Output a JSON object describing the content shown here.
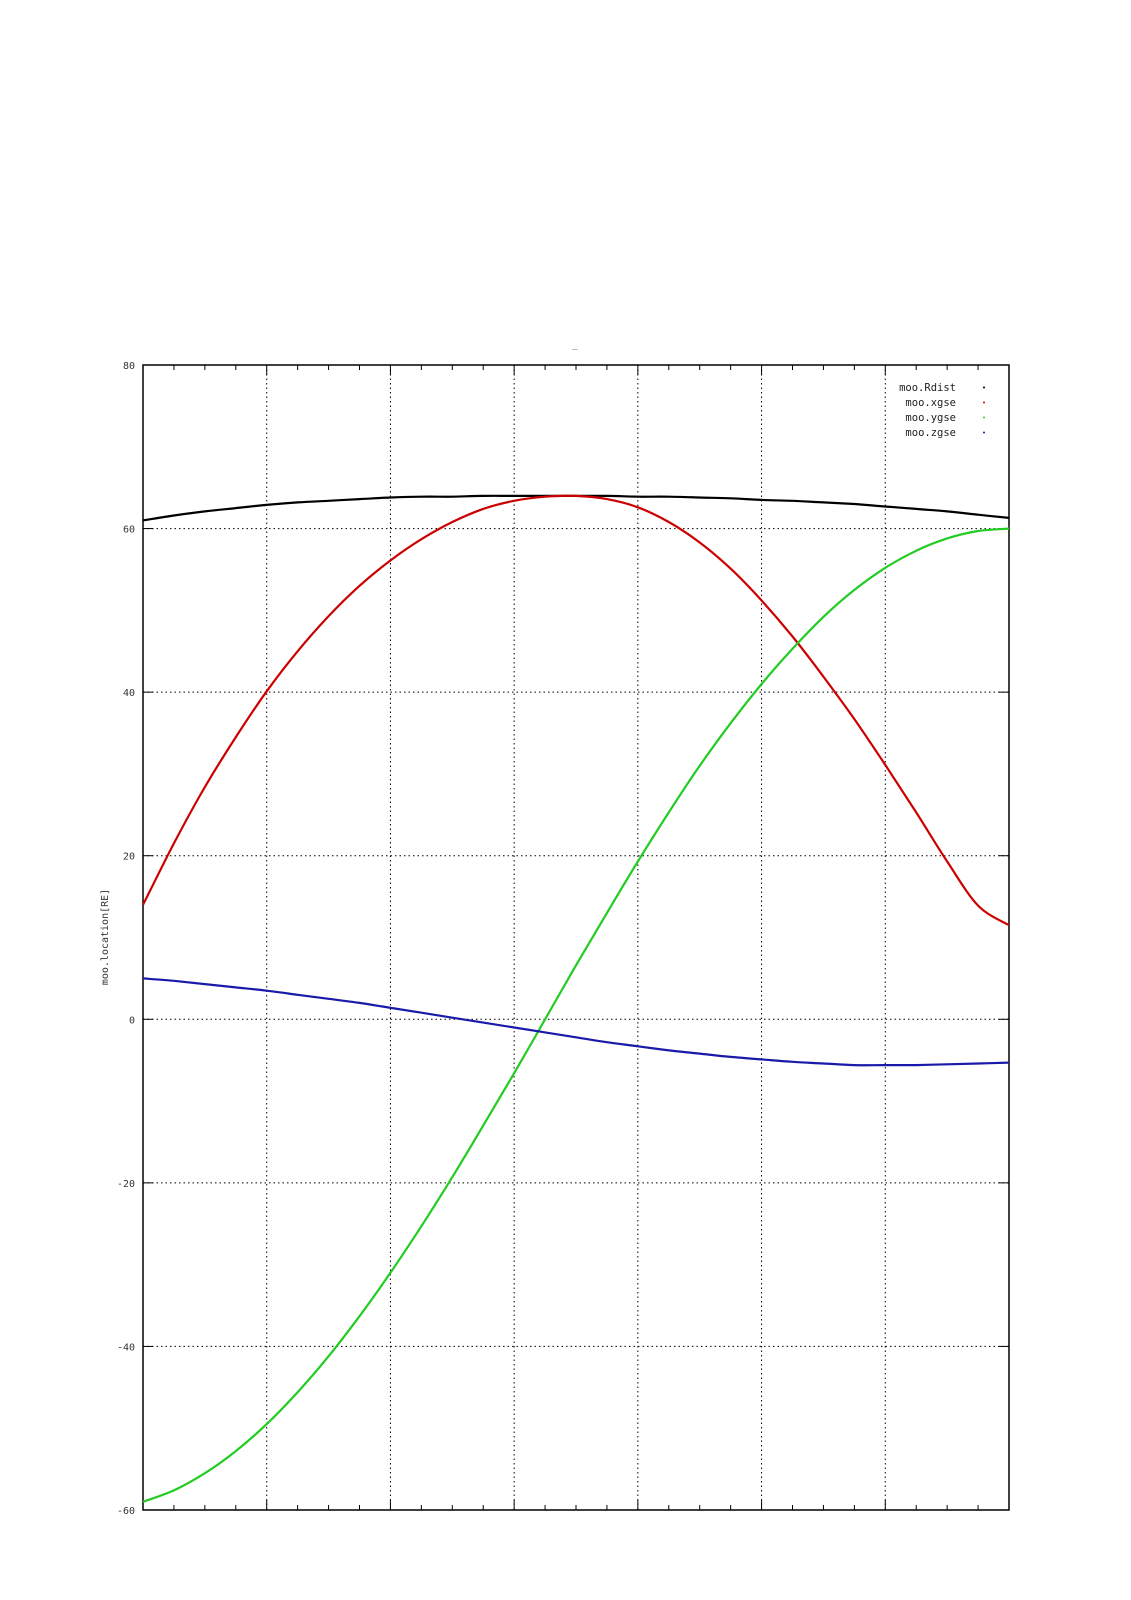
{
  "chart_data": {
    "type": "line",
    "title": "_",
    "xlabel": "",
    "ylabel": "moo.location[RE]",
    "ylim": [
      -60,
      80
    ],
    "xlim": [
      0,
      14
    ],
    "y_ticks": [
      80,
      60,
      40,
      20,
      0,
      -20,
      -40,
      -60
    ],
    "x_major_ticks": 7,
    "x_minor_per_major": 4,
    "grid": true,
    "legend_position": "top-right",
    "x": [
      0,
      0.5,
      1,
      1.5,
      2,
      2.5,
      3,
      3.5,
      4,
      4.5,
      5,
      5.5,
      6,
      6.5,
      7,
      7.5,
      8,
      8.5,
      9,
      9.5,
      10,
      10.5,
      11,
      11.5,
      12,
      12.5,
      13,
      13.5,
      14
    ],
    "series": [
      {
        "name": "moo.Rdist",
        "color": "#000000",
        "values": [
          61.0,
          61.6,
          62.1,
          62.5,
          62.9,
          63.2,
          63.4,
          63.6,
          63.8,
          63.9,
          63.9,
          64.0,
          64.0,
          64.0,
          64.0,
          64.0,
          63.9,
          63.9,
          63.8,
          63.7,
          63.5,
          63.4,
          63.2,
          63.0,
          62.7,
          62.4,
          62.1,
          61.7,
          61.3
        ]
      },
      {
        "name": "moo.xgse",
        "color": "#cc0000",
        "values": [
          14.0,
          21.5,
          28.4,
          34.5,
          40.1,
          45.0,
          49.3,
          53.0,
          56.1,
          58.7,
          60.8,
          62.4,
          63.4,
          63.9,
          64.0,
          63.6,
          62.6,
          60.8,
          58.3,
          55.1,
          51.2,
          46.8,
          41.9,
          36.7,
          31.1,
          25.3,
          19.3,
          13.9,
          11.5
        ]
      },
      {
        "name": "moo.ygse",
        "color": "#22cc22",
        "values": [
          -59.0,
          -57.6,
          -55.5,
          -52.8,
          -49.5,
          -45.6,
          -41.2,
          -36.3,
          -31.0,
          -25.3,
          -19.3,
          -13.0,
          -6.6,
          0.0,
          6.6,
          13.0,
          19.3,
          25.3,
          31.0,
          36.2,
          41.0,
          45.3,
          49.2,
          52.5,
          55.2,
          57.3,
          58.8,
          59.7,
          60.0
        ]
      },
      {
        "name": "moo.zgse",
        "color": "#1a1aaa",
        "values": [
          5.0,
          4.7,
          4.3,
          3.9,
          3.5,
          3.0,
          2.5,
          2.0,
          1.4,
          0.8,
          0.2,
          -0.4,
          -1.0,
          -1.6,
          -2.2,
          -2.8,
          -3.3,
          -3.8,
          -4.2,
          -4.6,
          -4.9,
          -5.2,
          -5.4,
          -5.6,
          -5.6,
          -5.6,
          -5.5,
          -5.4,
          -5.3
        ]
      }
    ]
  }
}
